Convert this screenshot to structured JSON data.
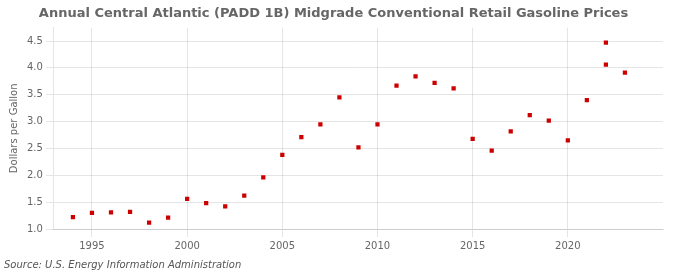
{
  "chart_data": {
    "type": "scatter",
    "title": "Annual Central Atlantic (PADD 1B) Midgrade Conventional Retail Gasoline Prices",
    "ylabel": "Dollars per Gallon",
    "annotation": "Source: U.S. Energy Information Administration",
    "x": [
      1994,
      1995,
      1996,
      1997,
      1998,
      1999,
      2000,
      2001,
      2002,
      2003,
      2004,
      2005,
      2006,
      2007,
      2008,
      2009,
      2010,
      2011,
      2012,
      2013,
      2014,
      2015,
      2016,
      2017,
      2018,
      2019,
      2020,
      2021,
      2022,
      2022,
      2023
    ],
    "values": [
      1.22,
      1.3,
      1.31,
      1.32,
      1.12,
      1.21,
      1.56,
      1.48,
      1.42,
      1.62,
      1.96,
      2.38,
      2.71,
      2.95,
      3.45,
      2.52,
      2.95,
      3.67,
      3.84,
      3.72,
      3.62,
      2.68,
      2.46,
      2.82,
      3.12,
      3.02,
      2.65,
      3.4,
      4.47,
      4.06,
      3.91
    ],
    "color": "#cc0000",
    "marker": "square",
    "xlim": [
      1993,
      2025
    ],
    "ylim": [
      1.0,
      4.75
    ],
    "xticks": [
      1995,
      2000,
      2005,
      2010,
      2015,
      2020
    ],
    "yticks": [
      {
        "value": 1.0,
        "label": "1.0"
      },
      1.5,
      {
        "value": 2.0,
        "label": "2.0"
      },
      2.5,
      {
        "value": 3.0,
        "label": "3.0"
      },
      3.5,
      {
        "value": 4.0,
        "label": "4.0"
      },
      4.5
    ],
    "grid": true
  }
}
